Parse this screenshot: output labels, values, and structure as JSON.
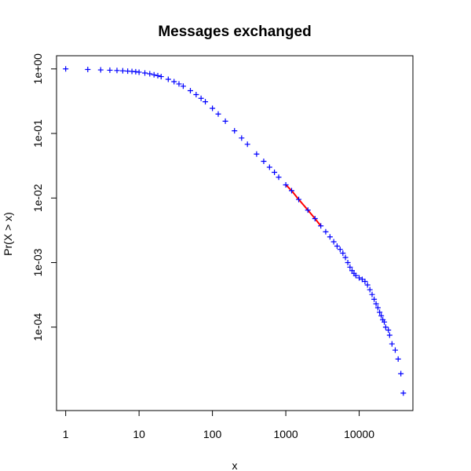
{
  "chart_data": {
    "type": "scatter",
    "title": "Messages exchanged",
    "xlabel": "x",
    "ylabel": "Pr(X > x)",
    "x_scale": "log",
    "y_scale": "log",
    "xlim": [
      0.75,
      54000
    ],
    "ylim": [
      5.1e-06,
      1.6
    ],
    "x_ticks": [
      {
        "value": 1,
        "label": "1"
      },
      {
        "value": 10,
        "label": "10"
      },
      {
        "value": 100,
        "label": "100"
      },
      {
        "value": 1000,
        "label": "1000"
      },
      {
        "value": 10000,
        "label": "10000"
      }
    ],
    "y_ticks": [
      {
        "value": 1,
        "label": "1e+00"
      },
      {
        "value": 0.1,
        "label": "1e-01"
      },
      {
        "value": 0.01,
        "label": "1e-02"
      },
      {
        "value": 0.001,
        "label": "1e-03"
      },
      {
        "value": 0.0001,
        "label": "1e-04"
      }
    ],
    "grid": false,
    "legend": "none",
    "colors": {
      "points": "#0000ff",
      "fit_line": "#ff0000",
      "axis": "#000000"
    },
    "marker": "plus",
    "series": [
      {
        "points": [
          [
            1,
            1.0
          ],
          [
            2,
            0.98
          ],
          [
            3,
            0.965
          ],
          [
            4,
            0.955
          ],
          [
            5,
            0.945
          ],
          [
            6,
            0.935
          ],
          [
            7,
            0.925
          ],
          [
            8,
            0.915
          ],
          [
            9,
            0.905
          ],
          [
            10,
            0.89
          ],
          [
            12,
            0.865
          ],
          [
            14,
            0.84
          ],
          [
            16,
            0.81
          ],
          [
            18,
            0.785
          ],
          [
            20,
            0.76
          ],
          [
            25,
            0.69
          ],
          [
            30,
            0.635
          ],
          [
            35,
            0.585
          ],
          [
            40,
            0.54
          ],
          [
            50,
            0.46
          ],
          [
            60,
            0.4
          ],
          [
            70,
            0.35
          ],
          [
            80,
            0.31
          ],
          [
            100,
            0.245
          ],
          [
            120,
            0.2
          ],
          [
            150,
            0.155
          ],
          [
            200,
            0.11
          ],
          [
            250,
            0.085
          ],
          [
            300,
            0.068
          ],
          [
            400,
            0.048
          ],
          [
            500,
            0.037
          ],
          [
            600,
            0.03
          ],
          [
            700,
            0.025
          ],
          [
            800,
            0.021
          ],
          [
            1000,
            0.016
          ],
          [
            1200,
            0.013
          ],
          [
            1500,
            0.0095
          ],
          [
            2000,
            0.0065
          ],
          [
            2500,
            0.0048
          ],
          [
            3000,
            0.0037
          ],
          [
            3500,
            0.003
          ],
          [
            4000,
            0.0025
          ],
          [
            4500,
            0.0021
          ],
          [
            5000,
            0.0018
          ],
          [
            5500,
            0.0016
          ],
          [
            6000,
            0.0014
          ],
          [
            6500,
            0.0012
          ],
          [
            7000,
            0.001
          ],
          [
            7500,
            0.00085
          ],
          [
            8000,
            0.00075
          ],
          [
            8500,
            0.00068
          ],
          [
            9000,
            0.00063
          ],
          [
            10000,
            0.00058
          ],
          [
            11000,
            0.00055
          ],
          [
            12000,
            0.00051
          ],
          [
            13000,
            0.00045
          ],
          [
            14000,
            0.00038
          ],
          [
            15000,
            0.00032
          ],
          [
            16000,
            0.00027
          ],
          [
            17000,
            0.00023
          ],
          [
            18000,
            0.0002
          ],
          [
            19000,
            0.00017
          ],
          [
            20000,
            0.00015
          ],
          [
            21000,
            0.00013
          ],
          [
            22000,
            0.00012
          ],
          [
            23000,
            0.0001
          ],
          [
            25000,
            9e-05
          ],
          [
            26000,
            7.5e-05
          ],
          [
            28000,
            5.5e-05
          ],
          [
            31000,
            4.4e-05
          ],
          [
            34000,
            3.2e-05
          ],
          [
            37000,
            1.9e-05
          ],
          [
            40000,
            9.5e-06
          ]
        ]
      }
    ],
    "fit_line": {
      "points": [
        [
          1000,
          0.016
        ],
        [
          1200,
          0.013
        ],
        [
          1500,
          0.0095
        ],
        [
          2000,
          0.0065
        ],
        [
          2500,
          0.0048
        ],
        [
          3000,
          0.0037
        ]
      ]
    }
  }
}
